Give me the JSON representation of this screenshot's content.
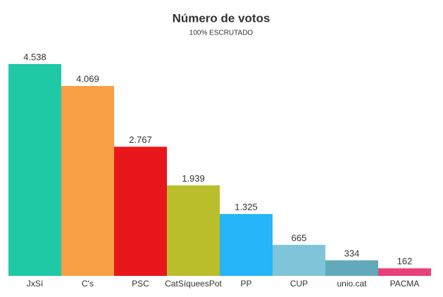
{
  "chart_data": {
    "type": "bar",
    "title": "Número de votos",
    "subtitle": "100% ESCRUTADO",
    "categories": [
      "JxSí",
      "C's",
      "PSC",
      "CatSíqueesPot",
      "PP",
      "CUP",
      "unio.cat",
      "PACMA"
    ],
    "values": [
      4538,
      4069,
      2767,
      1939,
      1325,
      665,
      334,
      162
    ],
    "value_labels": [
      "4.538",
      "4.069",
      "2.767",
      "1.939",
      "1.325",
      "665",
      "334",
      "162"
    ],
    "colors": [
      "#20c9a6",
      "#f9a044",
      "#e8171c",
      "#b9be2a",
      "#25b5f8",
      "#7fc4d8",
      "#62aabb",
      "#e8407a"
    ]
  }
}
